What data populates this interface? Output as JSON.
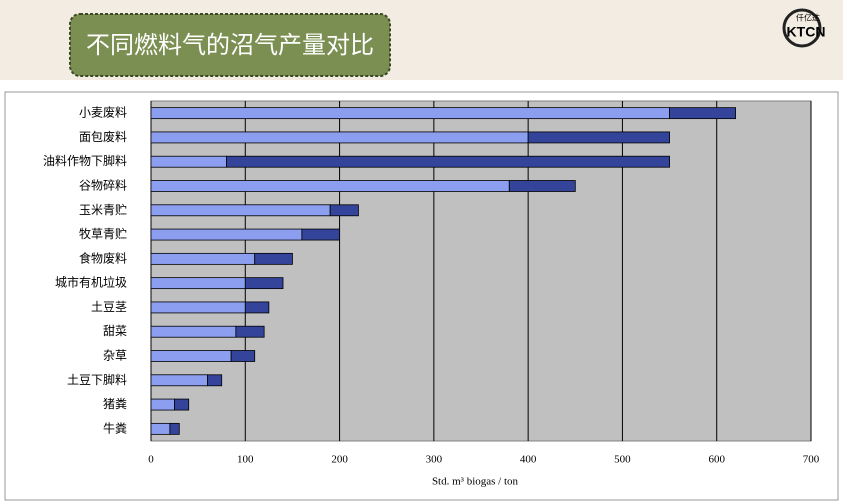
{
  "header": {
    "title": "不同燃料气的沼气产量对比",
    "logo_text": "KTCN",
    "logo_subtext": "仟亿达"
  },
  "chart_data": {
    "type": "stacked-barh",
    "categories": [
      "小麦废料",
      "面包废料",
      "油料作物下脚料",
      "谷物碎料",
      "玉米青贮",
      "牧草青贮",
      "食物废料",
      "城市有机垃圾",
      "土豆茎",
      "甜菜",
      "杂草",
      "土豆下脚料",
      "猪粪",
      "牛粪"
    ],
    "series": [
      {
        "color": "#8c9ef0",
        "values": [
          550,
          400,
          80,
          380,
          190,
          160,
          110,
          100,
          100,
          90,
          85,
          60,
          25,
          20
        ]
      },
      {
        "color": "#34449a",
        "values": [
          70,
          150,
          470,
          70,
          30,
          40,
          40,
          40,
          25,
          30,
          25,
          15,
          15,
          10
        ]
      }
    ],
    "xlabel": "Std. m³ biogas / ton",
    "xlim": [
      0,
      700
    ],
    "xticks": [
      0,
      100,
      200,
      300,
      400,
      500,
      600,
      700
    ],
    "grid": true
  }
}
